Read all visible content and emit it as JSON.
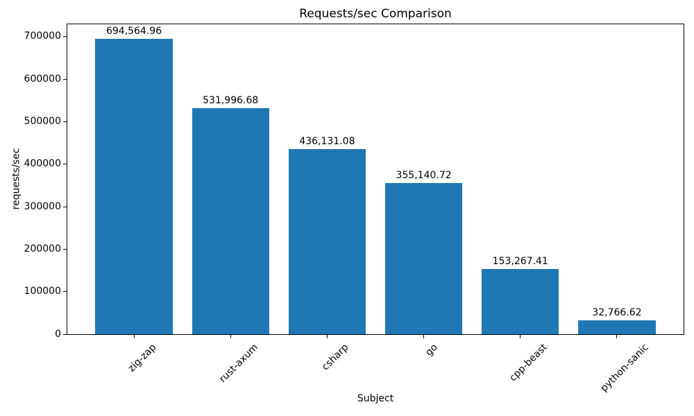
{
  "chart_data": {
    "type": "bar",
    "title": "Requests/sec Comparison",
    "xlabel": "Subject",
    "ylabel": "requests/sec",
    "categories": [
      "zig-zap",
      "rust-axum",
      "csharp",
      "go",
      "cpp-beast",
      "python-sanic"
    ],
    "values": [
      694564.96,
      531996.68,
      436131.08,
      355140.72,
      153267.41,
      32766.62
    ],
    "value_labels": [
      "694,564.96",
      "531,996.68",
      "436,131.08",
      "355,140.72",
      "153,267.41",
      "32,766.62"
    ],
    "y_ticks": [
      0,
      100000,
      200000,
      300000,
      400000,
      500000,
      600000,
      700000
    ],
    "y_tick_labels": [
      "0",
      "100000",
      "200000",
      "300000",
      "400000",
      "500000",
      "600000",
      "700000"
    ],
    "ylim": [
      0,
      729293
    ],
    "grid": false,
    "legend_position": "none",
    "bar_color": "#1f77b4",
    "text_color": "#000000",
    "x_tick_rotation_deg": 45
  }
}
